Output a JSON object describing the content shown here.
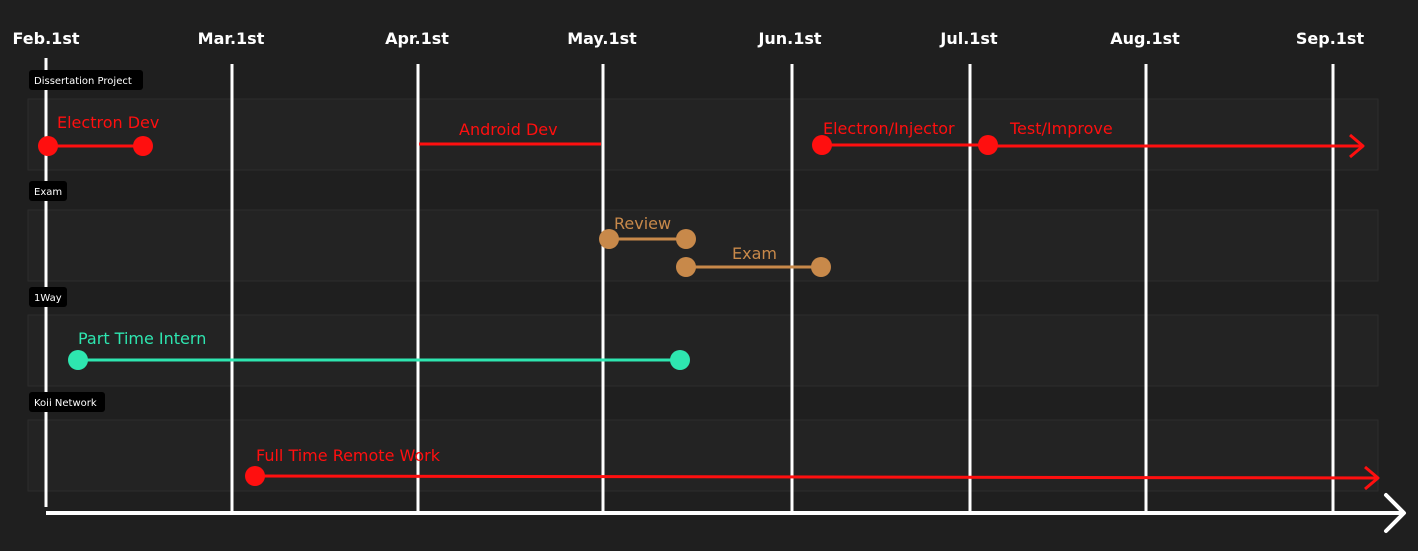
{
  "colors": {
    "background": "#1f1f1f",
    "panel_fill": "#232323",
    "panel_border": "#2c2c2c",
    "grid_line": "#ffffff",
    "red": "#ff0f0f",
    "tan": "#c8894a",
    "teal": "#2ee6b0"
  },
  "months": [
    "Feb.1st",
    "Mar.1st",
    "Apr.1st",
    "May.1st",
    "Jun.1st",
    "Jul.1st",
    "Aug.1st",
    "Sep.1st"
  ],
  "sections": [
    {
      "id": "dissertation",
      "tag": "Dissertation Project",
      "bars": [
        {
          "id": "electron-dev",
          "label": "Electron Dev",
          "color": "red",
          "start": "Feb.1st",
          "end": "Feb.18th",
          "start_dot": true,
          "end_dot": true,
          "arrow": false
        },
        {
          "id": "android-dev",
          "label": "Android Dev",
          "color": "red",
          "start": "Apr.1st",
          "end": "May.1st",
          "start_dot": false,
          "end_dot": false,
          "arrow": false
        },
        {
          "id": "electron-injector",
          "label": "Electron/Injector",
          "color": "red",
          "start": "Jun.5th",
          "end": "Jul.4th",
          "start_dot": true,
          "end_dot": false,
          "arrow": false
        },
        {
          "id": "test-improve",
          "label": "Test/Improve",
          "color": "red",
          "start": "Jul.4th",
          "end": "Sep.1st+",
          "start_dot": true,
          "end_dot": false,
          "arrow": true
        }
      ]
    },
    {
      "id": "exam",
      "tag": "Exam",
      "bars": [
        {
          "id": "review",
          "label": "Review",
          "color": "tan",
          "start": "May.2nd",
          "end": "May.15th",
          "start_dot": true,
          "end_dot": true,
          "arrow": false
        },
        {
          "id": "exam-bar",
          "label": "Exam",
          "color": "tan",
          "start": "May.15th",
          "end": "Jun.5th",
          "start_dot": true,
          "end_dot": true,
          "arrow": false
        }
      ]
    },
    {
      "id": "oneway",
      "tag": "1Way",
      "bars": [
        {
          "id": "part-time-intern",
          "label": "Part Time Intern",
          "color": "teal",
          "start": "Feb.6th",
          "end": "May.15th",
          "start_dot": true,
          "end_dot": true,
          "arrow": false
        }
      ]
    },
    {
      "id": "koii",
      "tag": "Koii Network",
      "bars": [
        {
          "id": "full-time-remote",
          "label": "Full Time Remote Work",
          "color": "red",
          "start": "Mar.5th",
          "end": "Sep.1st+",
          "start_dot": true,
          "end_dot": false,
          "arrow": true
        }
      ]
    }
  ]
}
